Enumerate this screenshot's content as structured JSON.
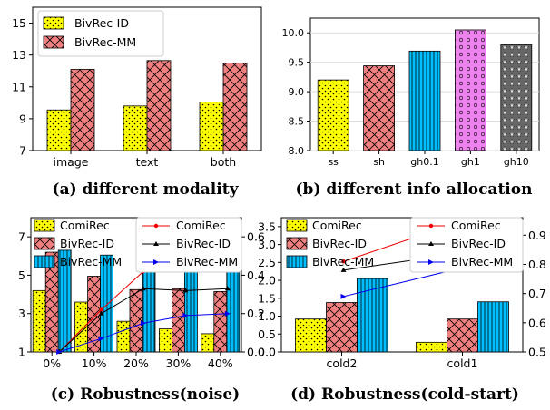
{
  "colors": {
    "id": "#ffff00",
    "mm": "#f08080",
    "comirec": "#ffff00",
    "mm_blue": "#00bfff",
    "gh1_pink": "#ee82ee",
    "gh10_gray": "#666666",
    "line_comirec": "#ee0000",
    "line_id": "#000000",
    "line_mm": "#0000ee"
  },
  "chart_data": [
    {
      "panel": "a",
      "type": "bar",
      "caption": "(a) different modality",
      "categories": [
        "image",
        "text",
        "both"
      ],
      "series": [
        {
          "name": "BivRec-ID",
          "values": [
            9.55,
            9.8,
            10.05
          ]
        },
        {
          "name": "BivRec-MM",
          "values": [
            12.1,
            12.65,
            12.5
          ]
        }
      ],
      "ylim": [
        7,
        16
      ],
      "yticks": [
        "7",
        "9",
        "11",
        "13",
        "15"
      ],
      "legend": "top-left"
    },
    {
      "panel": "b",
      "type": "bar",
      "caption": "(b) different info allocation",
      "categories": [
        "ss",
        "sh",
        "gh0.1",
        "gh1",
        "gh10"
      ],
      "values": [
        9.2,
        9.44,
        9.69,
        10.05,
        9.8
      ],
      "ylim": [
        8.0,
        10.25
      ],
      "yticks": [
        "8.0",
        "8.5",
        "9.0",
        "9.5",
        "10.0"
      ],
      "grid": true
    },
    {
      "panel": "c",
      "type": "bar+line",
      "caption": "(c) Robustness(noise)",
      "categories": [
        "0%",
        "10%",
        "20%",
        "30%",
        "40%"
      ],
      "bar_series": [
        {
          "name": "ComiRec",
          "values": [
            4.2,
            3.6,
            2.6,
            2.2,
            1.95
          ]
        },
        {
          "name": "BivRec-ID",
          "values": [
            6.2,
            4.95,
            4.25,
            4.3,
            4.15
          ]
        },
        {
          "name": "BivRec-MM",
          "values": [
            6.3,
            6.05,
            5.5,
            5.3,
            5.25
          ]
        }
      ],
      "line_series": [
        {
          "name": "ComiRec",
          "values": [
            0.0,
            0.22,
            0.42,
            0.5,
            0.56
          ]
        },
        {
          "name": "BivRec-ID",
          "values": [
            0.0,
            0.2,
            0.33,
            0.32,
            0.33
          ]
        },
        {
          "name": "BivRec-MM",
          "values": [
            0.0,
            0.07,
            0.15,
            0.19,
            0.2
          ]
        }
      ],
      "ylim_left": [
        1,
        8
      ],
      "yticks_left": [
        "1",
        "3",
        "5",
        "7"
      ],
      "ylim_right": [
        0.0,
        0.7
      ],
      "yticks_right": [
        "0.0",
        "0.2",
        "0.4",
        "0.6"
      ],
      "legend": "top"
    },
    {
      "panel": "d",
      "type": "bar+line",
      "caption": "(d) Robustness(cold-start)",
      "categories": [
        "cold2",
        "cold1"
      ],
      "bar_series": [
        {
          "name": "ComiRec",
          "values": [
            0.92,
            0.27
          ]
        },
        {
          "name": "BivRec-ID",
          "values": [
            1.38,
            0.92
          ]
        },
        {
          "name": "BivRec-MM",
          "values": [
            2.05,
            1.4
          ]
        }
      ],
      "line_series": [
        {
          "name": "ComiRec",
          "values": [
            0.81,
            0.95
          ]
        },
        {
          "name": "BivRec-ID",
          "values": [
            0.78,
            0.84
          ]
        },
        {
          "name": "BivRec-MM",
          "values": [
            0.69,
            0.79
          ]
        }
      ],
      "ylim_left": [
        0.0,
        3.75
      ],
      "yticks_left": [
        "0.0",
        "0.5",
        "1.0",
        "1.5",
        "2.0",
        "2.5",
        "3.0",
        "3.5"
      ],
      "ylim_right": [
        0.5,
        0.96
      ],
      "yticks_right": [
        "0.5",
        "0.6",
        "0.7",
        "0.8",
        "0.9"
      ],
      "legend": "top"
    }
  ]
}
